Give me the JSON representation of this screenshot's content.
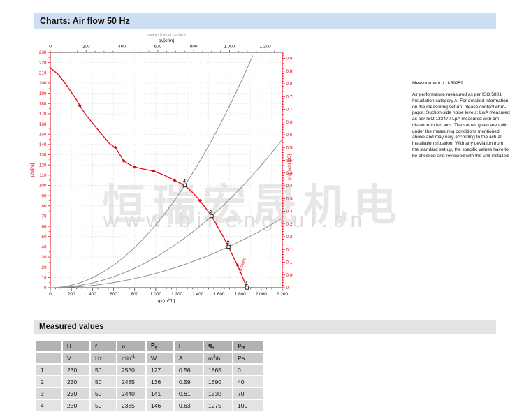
{
  "colors": {
    "accent_red": "#e30613",
    "header_blue": "#cfdff2",
    "section_gray": "#e4e4e4",
    "system_curve_gray": "#8f8f8f",
    "grid_gray": "#d6d6d6",
    "watermark_gray": "#e7e7e7"
  },
  "header": {
    "title": "Charts: Air flow 50 Hz"
  },
  "watermark": {
    "cn": "恒瑞宏晟机电",
    "url": "www.bihengrui.cn"
  },
  "measurement_note": {
    "title": "Measurement: LU-59959",
    "body": "Air performance measured as per ISO 5801 Installation category A. For detailed information on the measuring set-up, please contact ebm-papst. Suction-side noise levels: LwA measured as per ISO 13347 / LpA measured with 1m distance to fan axis. The values given are valid under the measuring conditions mentioned above and may vary according to the actual installation situation. With any deviation from the standard set-up, the specific values have to be checked and reviewed with the unit installed."
  },
  "chart_data": {
    "type": "line",
    "title": "Air flow 50 Hz",
    "top_note": "Druck p = f (qv) bei 1,15 kg/m³",
    "grid": true,
    "x_bottom": {
      "label": "qv[m^3/h]",
      "min": 0,
      "max": 2200,
      "tick_step": 200,
      "minor_step": 50,
      "tick_labels": [
        "0",
        "200",
        "400",
        "600",
        "800",
        "1.000",
        "1.200",
        "1.400",
        "1.600",
        "1.800",
        "2.000",
        "2.200"
      ]
    },
    "x_top": {
      "label": "qv[cfm]",
      "min": 0,
      "max": 1294.9,
      "tick_step": 200,
      "minor_step": 50,
      "label_max": 1200,
      "tick_labels": [
        "0",
        "200",
        "400",
        "600",
        "800",
        "1.000",
        "1.200"
      ]
    },
    "y_left": {
      "label": "pfs[Pa]",
      "min": 0,
      "max": 230,
      "tick_step": 10,
      "minor_step": 5
    },
    "y_right": {
      "label": "pfs[InchH2O]",
      "min": 0,
      "max": 0.9234,
      "tick_step": 0.05,
      "minor_step": 0.01,
      "pa_per_unit": 249.089
    },
    "fan_curve": {
      "name": "fan-characteristic-curve",
      "points": [
        [
          0,
          215
        ],
        [
          80,
          208
        ],
        [
          160,
          197
        ],
        [
          240,
          185
        ],
        [
          280,
          178
        ],
        [
          330,
          170
        ],
        [
          400,
          161
        ],
        [
          470,
          152
        ],
        [
          520,
          146
        ],
        [
          560,
          141
        ],
        [
          600,
          138
        ],
        [
          618,
          137
        ],
        [
          660,
          130
        ],
        [
          696,
          124
        ],
        [
          740,
          121
        ],
        [
          800,
          118
        ],
        [
          880,
          116
        ],
        [
          980,
          114
        ],
        [
          1080,
          110
        ],
        [
          1178,
          105
        ],
        [
          1275,
          100
        ],
        [
          1350,
          93
        ],
        [
          1420,
          85
        ],
        [
          1480,
          77
        ],
        [
          1530,
          70
        ],
        [
          1590,
          59
        ],
        [
          1650,
          48
        ],
        [
          1690,
          40
        ],
        [
          1740,
          29
        ],
        [
          1776,
          22
        ],
        [
          1820,
          11
        ],
        [
          1865,
          0
        ]
      ],
      "marker_points": [
        [
          280,
          178
        ],
        [
          618,
          137
        ],
        [
          696,
          124
        ],
        [
          800,
          118
        ],
        [
          980,
          114
        ],
        [
          1178,
          105
        ],
        [
          1420,
          85
        ],
        [
          1776,
          22
        ]
      ]
    },
    "system_curves": [
      {
        "name": "system-curve-through-point-4",
        "through": [
          1275,
          100
        ]
      },
      {
        "name": "system-curve-through-point-3",
        "through": [
          1530,
          70
        ]
      },
      {
        "name": "system-curve-through-point-2",
        "through": [
          1690,
          40
        ]
      }
    ],
    "operating_points": [
      {
        "label": "1",
        "qv": 1865,
        "pfs": 0
      },
      {
        "label": "2",
        "qv": 1690,
        "pfs": 40
      },
      {
        "label": "3",
        "qv": 1530,
        "pfs": 70
      },
      {
        "label": "4",
        "qv": 1275,
        "pfs": 100
      }
    ],
    "curve_annotation": "LU-59959"
  },
  "measured_values": {
    "title": "Measured values",
    "columns": [
      {
        "base": ""
      },
      {
        "base": "U"
      },
      {
        "base": "f"
      },
      {
        "base": "n"
      },
      {
        "base": "P",
        "sub": "e"
      },
      {
        "base": "I"
      },
      {
        "base": "q",
        "sub": "v"
      },
      {
        "base": "p",
        "sub": "fs"
      }
    ],
    "units": [
      {
        "base": ""
      },
      {
        "base": "V"
      },
      {
        "base": "Hz"
      },
      {
        "base": "min",
        "sup": "-1"
      },
      {
        "base": "W"
      },
      {
        "base": "A"
      },
      {
        "base": "m",
        "sup": "3",
        "suffix": "/h"
      },
      {
        "base": "Pa"
      }
    ],
    "rows": [
      [
        "1",
        "230",
        "50",
        "2550",
        "127",
        "0.56",
        "1865",
        "0"
      ],
      [
        "2",
        "230",
        "50",
        "2485",
        "136",
        "0.59",
        "1690",
        "40"
      ],
      [
        "3",
        "230",
        "50",
        "2440",
        "141",
        "0.61",
        "1530",
        "70"
      ],
      [
        "4",
        "230",
        "50",
        "2385",
        "146",
        "0.63",
        "1275",
        "100"
      ]
    ]
  }
}
